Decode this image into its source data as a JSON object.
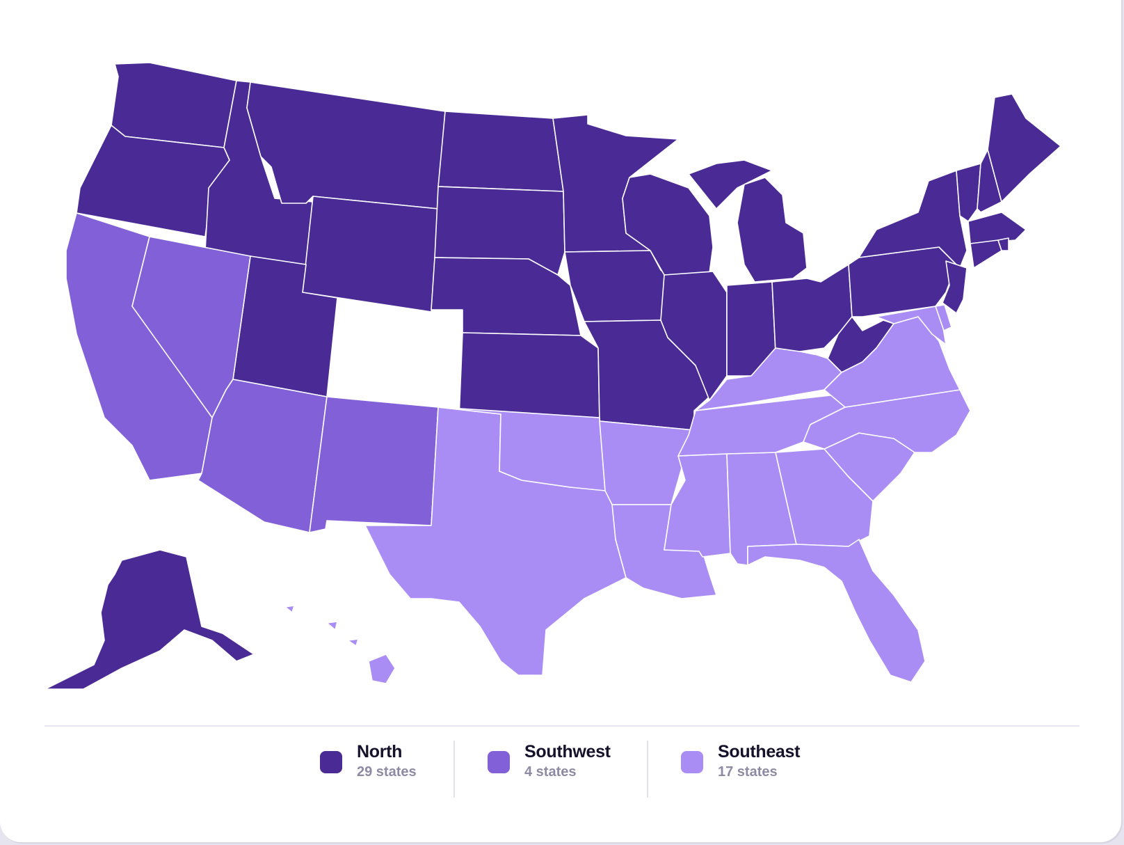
{
  "regions": {
    "north": {
      "color": "#4a2b96"
    },
    "southwest": {
      "color": "#8260d8"
    },
    "southeast": {
      "color": "#aa8cf5"
    }
  },
  "states": {
    "north": [
      "WA",
      "OR",
      "ID",
      "MT",
      "WY",
      "ND",
      "SD",
      "NE",
      "KS",
      "MN",
      "IA",
      "MO",
      "WI",
      "IL",
      "MI",
      "IN",
      "OH",
      "PA",
      "NY",
      "NJ",
      "WV",
      "VT",
      "NH",
      "ME",
      "MA",
      "CT",
      "RI",
      "UT",
      "AK"
    ],
    "southwest": [
      "CA",
      "NV",
      "AZ",
      "NM"
    ],
    "southeast": [
      "TX",
      "OK",
      "AR",
      "LA",
      "MS",
      "AL",
      "TN",
      "KY",
      "GA",
      "FL",
      "SC",
      "NC",
      "VA",
      "MD",
      "DE",
      "DC",
      "HI"
    ]
  },
  "legend": [
    {
      "name": "North",
      "count": "29 states",
      "color": "#4a2b96"
    },
    {
      "name": "Southwest",
      "count": "4 states",
      "color": "#8260d8"
    },
    {
      "name": "Southeast",
      "count": "17 states",
      "color": "#aa8cf5"
    }
  ]
}
